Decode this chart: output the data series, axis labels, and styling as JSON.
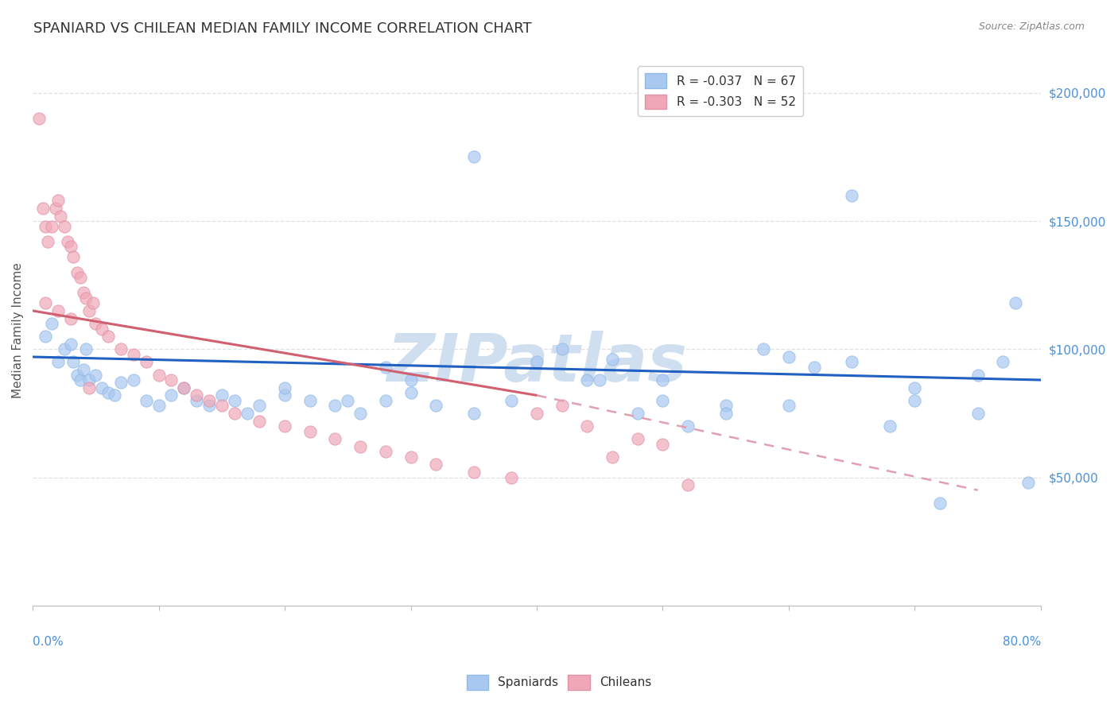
{
  "title": "SPANIARD VS CHILEAN MEDIAN FAMILY INCOME CORRELATION CHART",
  "source_text": "Source: ZipAtlas.com",
  "ylabel": "Median Family Income",
  "yticks": [
    0,
    50000,
    100000,
    150000,
    200000
  ],
  "ytick_labels": [
    "",
    "$50,000",
    "$100,000",
    "$150,000",
    "$200,000"
  ],
  "xlim": [
    0.0,
    80.0
  ],
  "ylim": [
    0,
    215000
  ],
  "spaniards_x": [
    1.0,
    1.5,
    2.0,
    2.5,
    3.0,
    3.2,
    3.5,
    3.8,
    4.0,
    4.2,
    4.5,
    5.0,
    5.5,
    6.0,
    6.5,
    7.0,
    8.0,
    9.0,
    10.0,
    11.0,
    12.0,
    13.0,
    14.0,
    15.0,
    16.0,
    17.0,
    18.0,
    20.0,
    22.0,
    24.0,
    26.0,
    28.0,
    30.0,
    32.0,
    35.0,
    38.0,
    40.0,
    42.0,
    44.0,
    46.0,
    48.0,
    50.0,
    52.0,
    55.0,
    58.0,
    60.0,
    62.0,
    65.0,
    68.0,
    70.0,
    72.0,
    75.0,
    77.0,
    78.0,
    79.0,
    28.0,
    30.0,
    35.0,
    20.0,
    25.0,
    45.0,
    50.0,
    55.0,
    60.0,
    65.0,
    70.0,
    75.0
  ],
  "spaniards_y": [
    105000,
    110000,
    95000,
    100000,
    102000,
    95000,
    90000,
    88000,
    92000,
    100000,
    88000,
    90000,
    85000,
    83000,
    82000,
    87000,
    88000,
    80000,
    78000,
    82000,
    85000,
    80000,
    78000,
    82000,
    80000,
    75000,
    78000,
    82000,
    80000,
    78000,
    75000,
    80000,
    83000,
    78000,
    75000,
    80000,
    95000,
    100000,
    88000,
    96000,
    75000,
    88000,
    70000,
    78000,
    100000,
    97000,
    93000,
    160000,
    70000,
    80000,
    40000,
    75000,
    95000,
    118000,
    48000,
    93000,
    88000,
    175000,
    85000,
    80000,
    88000,
    80000,
    75000,
    78000,
    95000,
    85000,
    90000
  ],
  "chileans_x": [
    0.5,
    0.8,
    1.0,
    1.2,
    1.5,
    1.8,
    2.0,
    2.2,
    2.5,
    2.8,
    3.0,
    3.2,
    3.5,
    3.8,
    4.0,
    4.2,
    4.5,
    4.8,
    5.0,
    5.5,
    6.0,
    7.0,
    8.0,
    9.0,
    10.0,
    11.0,
    12.0,
    13.0,
    14.0,
    15.0,
    16.0,
    18.0,
    20.0,
    22.0,
    24.0,
    26.0,
    28.0,
    30.0,
    32.0,
    35.0,
    38.0,
    40.0,
    42.0,
    44.0,
    46.0,
    48.0,
    50.0,
    52.0,
    1.0,
    2.0,
    3.0,
    4.5
  ],
  "chileans_y": [
    190000,
    155000,
    148000,
    142000,
    148000,
    155000,
    158000,
    152000,
    148000,
    142000,
    140000,
    136000,
    130000,
    128000,
    122000,
    120000,
    115000,
    118000,
    110000,
    108000,
    105000,
    100000,
    98000,
    95000,
    90000,
    88000,
    85000,
    82000,
    80000,
    78000,
    75000,
    72000,
    70000,
    68000,
    65000,
    62000,
    60000,
    58000,
    55000,
    52000,
    50000,
    75000,
    78000,
    70000,
    58000,
    65000,
    63000,
    47000,
    118000,
    115000,
    112000,
    85000
  ],
  "spaniard_line_color": "#2060c0",
  "chilean_line_color": "#d06070",
  "chilean_dash_color": "#e0a0b0",
  "watermark_text": "ZIPatlas",
  "watermark_color": "#d0dff0",
  "background_color": "#ffffff",
  "grid_color": "#dddddd",
  "title_fontsize": 13,
  "axis_label_color": "#4a90d9"
}
